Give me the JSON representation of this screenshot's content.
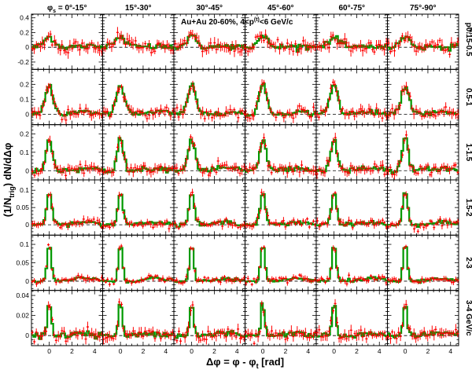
{
  "chart_data": {
    "type": "line",
    "figure_note": "Au+Au 20-60%, 4<p",
    "annotation": {
      "prefix": "Au+Au 20-60%, 4<p",
      "sup": "(t)",
      "sub": "T",
      "suffix": "<6 GeV/c"
    },
    "ylabel": {
      "pre": "(1/N",
      "sub": "trig",
      "post": ") dN/dΔφ"
    },
    "xlabel": "Δφ = φ - φ",
    "xlabel_sub": "t",
    "xlabel_unit": "[rad]",
    "row_title": {
      "main": "p",
      "sup": "(a)",
      "sub": "T"
    },
    "columns": [
      "0°-15°",
      "15°-30°",
      "30°-45°",
      "45°-60°",
      "60°-75°",
      "75°-90°"
    ],
    "first_column_prefix": "φ",
    "first_column_prefix_sub": "s",
    "first_column_eq": " = ",
    "rows": [
      {
        "label": "0.15-0.5",
        "ylim": [
          -0.3,
          0.45
        ],
        "yticks": [
          -0.2,
          0,
          0.2,
          0.4
        ],
        "ytick_labels": [
          "-0.2",
          "0",
          "0.2",
          "0.4"
        ],
        "peak": 0.14,
        "width": 0.45,
        "noise": 0.06
      },
      {
        "label": "0.5-1",
        "ylim": [
          -0.07,
          0.3
        ],
        "yticks": [
          0,
          0.1,
          0.2
        ],
        "ytick_labels": [
          "0",
          "0.1",
          "0.2"
        ],
        "peak": 0.19,
        "width": 0.35,
        "noise": 0.025
      },
      {
        "label": "1-1.5",
        "ylim": [
          -0.05,
          0.25
        ],
        "yticks": [
          0,
          0.1,
          0.2
        ],
        "ytick_labels": [
          "0",
          "0.1",
          "0.2"
        ],
        "peak": 0.17,
        "width": 0.28,
        "noise": 0.02
      },
      {
        "label": "1.5-2",
        "ylim": [
          -0.03,
          0.13
        ],
        "yticks": [
          0,
          0.05,
          0.1
        ],
        "ytick_labels": [
          "0",
          "0.05",
          "0.1"
        ],
        "peak": 0.095,
        "width": 0.22,
        "noise": 0.008
      },
      {
        "label": "2-3",
        "ylim": [
          -0.025,
          0.125
        ],
        "yticks": [
          0,
          0.05,
          0.1
        ],
        "ytick_labels": [
          "0",
          "0.05",
          "0.1"
        ],
        "peak": 0.1,
        "width": 0.18,
        "noise": 0.006
      },
      {
        "label": "3-4",
        "ylim": [
          -0.01,
          0.045
        ],
        "yticks": [
          0,
          0.02,
          0.04
        ],
        "ytick_labels": [
          "0",
          "0.02",
          "0.04"
        ],
        "peak": 0.033,
        "width": 0.16,
        "noise": 0.004
      }
    ],
    "row_unit": "GeV/c",
    "xlim": [
      -1.571,
      4.712
    ],
    "xticks": [
      0,
      2,
      4
    ],
    "xtick_labels": [
      "0",
      "2",
      "4"
    ],
    "series": [
      {
        "style": "red data points with error bars"
      },
      {
        "style": "green histogram"
      }
    ],
    "colors": {
      "data": "#ff0000",
      "model": "#009900",
      "axis": "#000000",
      "zero_line": "#000000"
    }
  }
}
